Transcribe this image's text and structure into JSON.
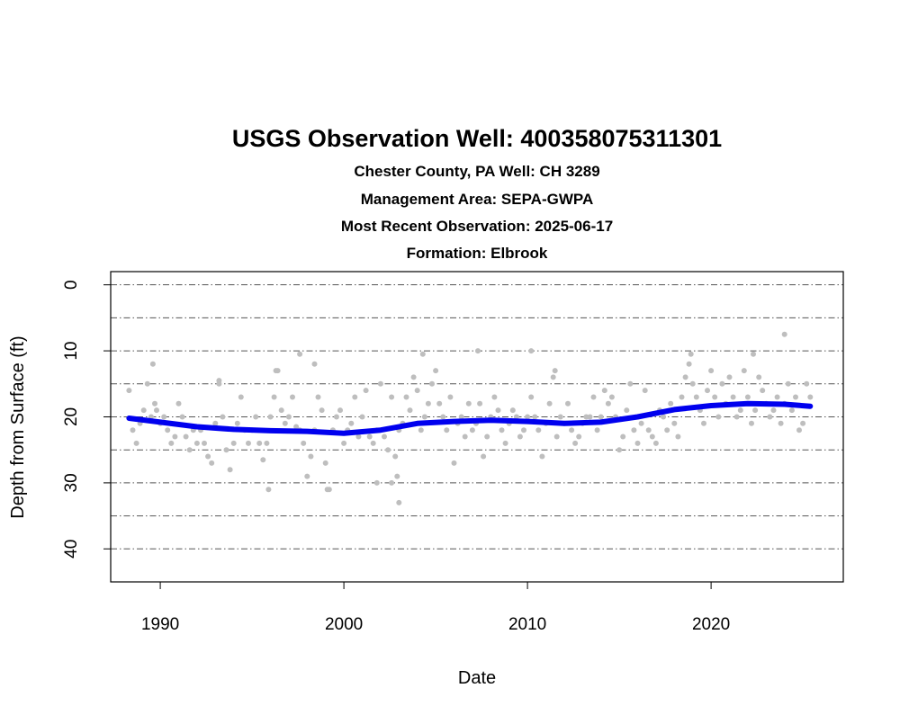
{
  "chart_data": {
    "type": "scatter",
    "title": "USGS Observation Well:  400358075311301",
    "subtitles": [
      "Chester County, PA   Well: CH 3289",
      "Management Area: SEPA-GWPA",
      "Most Recent Observation: 2025-06-17",
      "Formation: Elbrook"
    ],
    "xlabel": "Date",
    "ylabel": "Depth from Surface (ft)",
    "xlim": [
      1987.3,
      2027.2
    ],
    "ylim": [
      45,
      -2
    ],
    "y_reversed": true,
    "x_ticks": [
      1990,
      2000,
      2010,
      2020
    ],
    "x_tick_labels": [
      "1990",
      "2000",
      "2010",
      "2020"
    ],
    "y_ticks": [
      0,
      10,
      20,
      30,
      40
    ],
    "y_tick_labels": [
      "0",
      "10",
      "20",
      "30",
      "40"
    ],
    "gridlines_y": [
      0,
      5,
      10,
      15,
      20,
      25,
      30,
      35,
      40
    ],
    "grid": true,
    "colors": {
      "points": "#bebebe",
      "trend": "#0000ee",
      "grid": "#555555"
    },
    "series": [
      {
        "kind": "points",
        "x": [
          1988.3,
          1988.5,
          1988.7,
          1988.9,
          1989.1,
          1989.3,
          1989.5,
          1989.7,
          1989.8,
          1990.0,
          1990.2,
          1990.4,
          1990.6,
          1990.8,
          1991.0,
          1991.2,
          1991.4,
          1991.6,
          1991.8,
          1992.0,
          1992.2,
          1992.4,
          1992.6,
          1992.8,
          1993.0,
          1993.2,
          1993.4,
          1993.6,
          1993.8,
          1994.0,
          1994.2,
          1994.4,
          1994.6,
          1994.8,
          1995.0,
          1995.2,
          1995.4,
          1995.6,
          1995.8,
          1996.0,
          1996.2,
          1996.4,
          1996.6,
          1996.8,
          1997.0,
          1997.2,
          1997.4,
          1997.6,
          1997.8,
          1998.0,
          1998.2,
          1998.4,
          1998.6,
          1998.8,
          1999.0,
          1999.2,
          1999.4,
          1999.6,
          1999.8,
          2000.0,
          2000.2,
          2000.4,
          2000.6,
          2000.8,
          2001.0,
          2001.2,
          2001.4,
          2001.6,
          2001.8,
          2002.0,
          2002.2,
          2002.4,
          2002.6,
          2002.8,
          2003.0,
          2003.2,
          2003.4,
          2003.6,
          2003.8,
          2004.0,
          2004.2,
          2004.4,
          2004.6,
          2004.8,
          2005.0,
          2005.2,
          2005.4,
          2005.6,
          2005.8,
          2006.0,
          2006.2,
          2006.4,
          2006.6,
          2006.8,
          2007.0,
          2007.2,
          2007.4,
          2007.6,
          2007.8,
          2008.0,
          2008.2,
          2008.4,
          2008.6,
          2008.8,
          2009.0,
          2009.2,
          2009.4,
          2009.6,
          2009.8,
          2010.0,
          2010.2,
          2010.4,
          2010.6,
          2010.8,
          2011.0,
          2011.2,
          2011.4,
          2011.6,
          2011.8,
          2012.0,
          2012.2,
          2012.4,
          2012.6,
          2012.8,
          2013.0,
          2013.2,
          2013.4,
          2013.6,
          2013.8,
          2014.0,
          2014.2,
          2014.4,
          2014.6,
          2014.8,
          2015.0,
          2015.2,
          2015.4,
          2015.6,
          2015.8,
          2016.0,
          2016.2,
          2016.4,
          2016.6,
          2016.8,
          2017.0,
          2017.2,
          2017.4,
          2017.6,
          2017.8,
          2018.0,
          2018.2,
          2018.4,
          2018.6,
          2018.8,
          2019.0,
          2019.2,
          2019.4,
          2019.6,
          2019.8,
          2020.0,
          2020.2,
          2020.4,
          2020.6,
          2020.8,
          2021.0,
          2021.2,
          2021.4,
          2021.6,
          2021.8,
          2022.0,
          2022.2,
          2022.4,
          2022.6,
          2022.8,
          2023.0,
          2023.2,
          2023.4,
          2023.6,
          2023.8,
          2024.0,
          2024.2,
          2024.4,
          2024.6,
          2024.8,
          2025.0,
          2025.2,
          2025.4,
          1989.6,
          1993.2,
          1996.3,
          1997.6,
          1998.4,
          2002.9,
          2004.3,
          2007.3,
          2010.2,
          2011.5,
          2018.9,
          2022.3,
          2024.0,
          1995.9,
          1999.1,
          2001.8,
          2002.6,
          2003.0
        ],
        "y": [
          16.0,
          22.0,
          24.0,
          21.0,
          19.0,
          15.0,
          20.0,
          18.0,
          19.0,
          21.0,
          20.0,
          22.0,
          24.0,
          23.0,
          18.0,
          20.0,
          23.0,
          25.0,
          22.0,
          24.0,
          22.0,
          24.0,
          26.0,
          27.0,
          21.0,
          15.0,
          20.0,
          25.0,
          28.0,
          24.0,
          21.0,
          17.0,
          22.0,
          24.0,
          22.0,
          20.0,
          24.0,
          26.5,
          24.0,
          20.0,
          17.0,
          13.0,
          19.0,
          21.0,
          20.0,
          17.0,
          21.5,
          22.0,
          24.0,
          29.0,
          26.0,
          22.0,
          17.0,
          19.0,
          27.0,
          31.0,
          22.0,
          20.0,
          19.0,
          24.0,
          22.0,
          21.0,
          17.0,
          23.0,
          20.0,
          16.0,
          23.0,
          24.0,
          22.0,
          15.0,
          23.0,
          25.0,
          17.0,
          26.0,
          22.0,
          21.0,
          17.0,
          19.0,
          14.0,
          16.0,
          22.0,
          20.0,
          18.0,
          15.0,
          13.0,
          18.0,
          20.0,
          22.0,
          17.0,
          27.0,
          21.0,
          20.0,
          23.0,
          18.0,
          22.0,
          21.0,
          18.0,
          26.0,
          23.0,
          20.0,
          17.0,
          19.0,
          22.0,
          24.0,
          21.0,
          19.0,
          20.0,
          23.0,
          22.0,
          20.0,
          17.0,
          20.0,
          22.0,
          26.0,
          21.0,
          18.0,
          14.0,
          23.0,
          20.0,
          21.0,
          18.0,
          22.0,
          24.0,
          23.0,
          21.0,
          20.0,
          20.0,
          17.0,
          22.0,
          20.0,
          16.0,
          18.0,
          17.0,
          20.0,
          25.0,
          23.0,
          19.0,
          15.0,
          22.0,
          24.0,
          21.0,
          16.0,
          22.0,
          23.0,
          24.0,
          19.0,
          20.0,
          22.0,
          18.0,
          21.0,
          23.0,
          17.0,
          14.0,
          12.0,
          15.0,
          17.0,
          19.0,
          21.0,
          16.0,
          13.0,
          17.0,
          20.0,
          15.0,
          18.0,
          14.0,
          17.0,
          20.0,
          19.0,
          13.0,
          17.0,
          21.0,
          19.0,
          14.0,
          16.0,
          18.0,
          20.0,
          19.0,
          17.0,
          21.0,
          18.0,
          15.0,
          19.0,
          17.0,
          22.0,
          21.0,
          15.0,
          17.0,
          12.0,
          14.5,
          13.0,
          10.5,
          12.0,
          29.0,
          10.5,
          10.0,
          10.0,
          13.0,
          10.5,
          10.5,
          7.5,
          31.0,
          31.0,
          30.0,
          30.0,
          33.0
        ]
      },
      {
        "kind": "trend",
        "x": [
          1988.3,
          1990,
          1992,
          1994,
          1996,
          1998,
          2000,
          2002,
          2004,
          2006,
          2008,
          2010,
          2012,
          2014,
          2016,
          2018,
          2020,
          2022,
          2024,
          2025.4
        ],
        "y": [
          20.2,
          20.8,
          21.5,
          21.9,
          22.1,
          22.2,
          22.5,
          22.0,
          21.0,
          20.7,
          20.5,
          20.7,
          21.0,
          20.8,
          20.0,
          18.9,
          18.3,
          18.0,
          18.1,
          18.4
        ]
      }
    ]
  }
}
